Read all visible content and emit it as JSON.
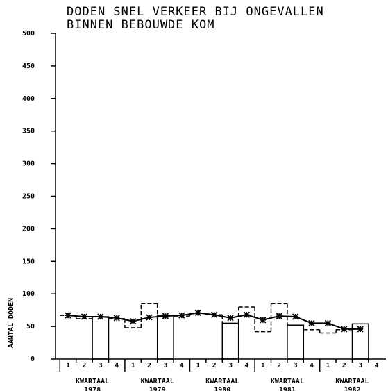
{
  "chart_data": {
    "type": "line",
    "title": [
      "DODEN SNEL VERKEER BIJ ONGEVALLEN",
      "BINNEN BEBOUWDE KOM"
    ],
    "y_label": "AANTAL DODEN",
    "categories": [
      "1",
      "2",
      "3",
      "4",
      "1",
      "2",
      "3",
      "4",
      "1",
      "2",
      "3",
      "4",
      "1",
      "2",
      "3",
      "4",
      "1",
      "2",
      "3",
      "4"
    ],
    "groups": [
      {
        "label": "KWARTAAL",
        "year": "1978"
      },
      {
        "label": "KWARTAAL",
        "year": "1979"
      },
      {
        "label": "KWARTAAL",
        "year": "1980"
      },
      {
        "label": "KWARTAAL",
        "year": "1981"
      },
      {
        "label": "KWARTAAL",
        "year": "1982"
      }
    ],
    "series": [
      {
        "color": "#000",
        "style": "step",
        "values": [
          67,
          62,
          65,
          62,
          48,
          85,
          67,
          66,
          70,
          68,
          55,
          80,
          42,
          85,
          52,
          45,
          40,
          45,
          54,
          null
        ]
      },
      {
        "color": "#000",
        "style": "markers",
        "values": [
          67,
          65,
          65,
          63,
          58,
          64,
          66,
          67,
          71,
          68,
          63,
          68,
          60,
          66,
          65,
          55,
          55,
          46,
          46,
          null
        ]
      }
    ],
    "ylim": [
      0,
      500
    ],
    "yticks": [
      0,
      50,
      100,
      150,
      200,
      250,
      300,
      350,
      400,
      450,
      500
    ]
  }
}
